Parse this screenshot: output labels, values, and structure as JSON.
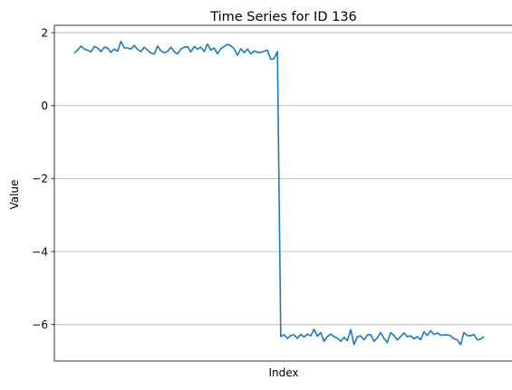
{
  "chart_data": {
    "type": "line",
    "title": "Time Series for ID 136",
    "xlabel": "Index",
    "ylabel": "Value",
    "ylim": [
      -7,
      2.2
    ],
    "yticks": [
      2,
      0,
      -2,
      -4,
      -6
    ],
    "ytick_labels": [
      "2",
      "0",
      "−2",
      "−4",
      "−6"
    ],
    "xticks_visible": false,
    "grid": "horizontal",
    "series": [
      {
        "color": "#1f77b4",
        "values": [
          1.44,
          1.52,
          1.63,
          1.55,
          1.52,
          1.47,
          1.62,
          1.58,
          1.48,
          1.6,
          1.58,
          1.46,
          1.55,
          1.49,
          1.76,
          1.58,
          1.58,
          1.55,
          1.65,
          1.54,
          1.48,
          1.6,
          1.52,
          1.44,
          1.41,
          1.63,
          1.5,
          1.45,
          1.48,
          1.6,
          1.48,
          1.42,
          1.55,
          1.6,
          1.62,
          1.47,
          1.62,
          1.55,
          1.6,
          1.48,
          1.69,
          1.52,
          1.58,
          1.42,
          1.56,
          1.62,
          1.68,
          1.64,
          1.56,
          1.38,
          1.56,
          1.45,
          1.55,
          1.42,
          1.5,
          1.46,
          1.46,
          1.49,
          1.52,
          1.27,
          1.29,
          1.48,
          -6.33,
          -6.28,
          -6.38,
          -6.3,
          -6.28,
          -6.38,
          -6.27,
          -6.34,
          -6.26,
          -6.31,
          -6.13,
          -6.32,
          -6.22,
          -6.46,
          -6.33,
          -6.26,
          -6.33,
          -6.37,
          -6.46,
          -6.35,
          -6.44,
          -6.14,
          -6.55,
          -6.34,
          -6.31,
          -6.42,
          -6.29,
          -6.27,
          -6.46,
          -6.36,
          -6.22,
          -6.38,
          -6.49,
          -6.22,
          -6.3,
          -6.42,
          -6.33,
          -6.23,
          -6.33,
          -6.31,
          -6.39,
          -6.33,
          -6.42,
          -6.2,
          -6.3,
          -6.17,
          -6.27,
          -6.23,
          -6.29,
          -6.29,
          -6.28,
          -6.31,
          -6.39,
          -6.42,
          -6.55,
          -6.22,
          -6.3,
          -6.31,
          -6.27,
          -6.42,
          -6.4,
          -6.33
        ]
      }
    ]
  }
}
